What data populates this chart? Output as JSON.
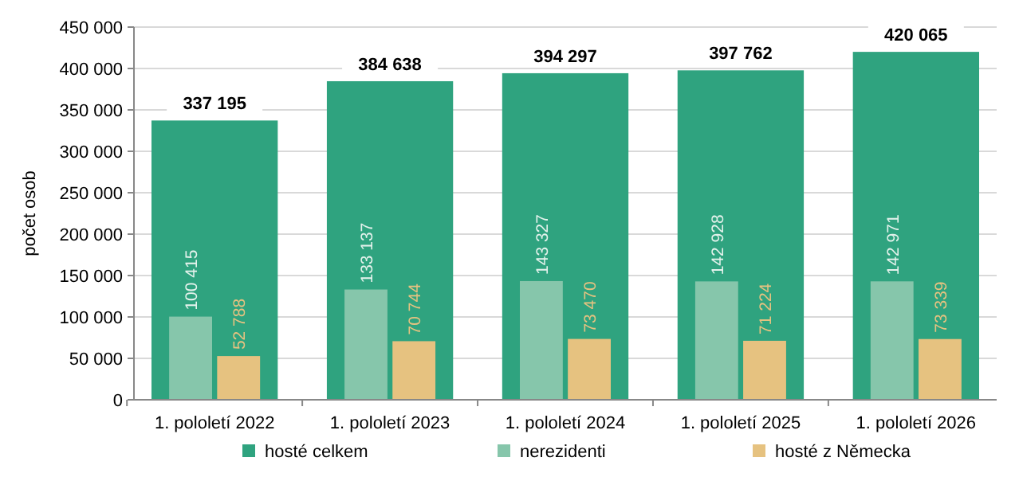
{
  "chart_data": {
    "type": "bar",
    "ylabel": "počet osob",
    "categories": [
      "1. pololetí 2022",
      "1. pololetí 2023",
      "1. pololetí 2024",
      "1. pololetí 2025",
      "1. pololetí 2026"
    ],
    "series": [
      {
        "name": "hosté celkem",
        "color": "#2fa37f",
        "values": [
          337195,
          384638,
          394297,
          397762,
          420065
        ],
        "value_labels": [
          "337 195",
          "384 638",
          "394 297",
          "397 762",
          "420 065"
        ]
      },
      {
        "name": "nerezidenti",
        "color": "#86c6ab",
        "values": [
          100415,
          133137,
          143327,
          142928,
          142971
        ],
        "value_labels": [
          "100 415",
          "133 137",
          "143 327",
          "142 928",
          "142 971"
        ]
      },
      {
        "name": "hosté z Německa",
        "color": "#e6c280",
        "values": [
          52788,
          70744,
          73470,
          71224,
          73339
        ],
        "value_labels": [
          "52 788",
          "70 744",
          "73 470",
          "71 224",
          "73 339"
        ]
      }
    ],
    "ylim": [
      0,
      450000
    ],
    "yticks": [
      {
        "value": 0,
        "label": "0"
      },
      {
        "value": 50000,
        "label": "50 000"
      },
      {
        "value": 100000,
        "label": "100 000"
      },
      {
        "value": 150000,
        "label": "150 000"
      },
      {
        "value": 200000,
        "label": "200 000"
      },
      {
        "value": 250000,
        "label": "250 000"
      },
      {
        "value": 300000,
        "label": "300 000"
      },
      {
        "value": 350000,
        "label": "350 000"
      },
      {
        "value": 400000,
        "label": "400 000"
      },
      {
        "value": 450000,
        "label": "450 000"
      }
    ],
    "grid": "y",
    "legend": "bottom"
  }
}
